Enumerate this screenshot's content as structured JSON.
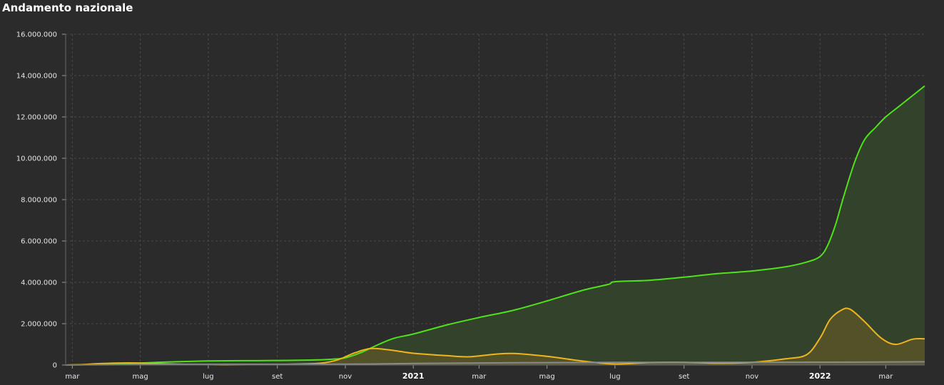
{
  "header": {
    "title": "Andamento nazionale"
  },
  "colors": {
    "background": "#2b2b2b",
    "grid": "#4a4a4a",
    "green": "#4fe11a",
    "green_fill": "#34432a",
    "yellow": "#f0b41c",
    "yellow_fill": "#5a5527",
    "gray": "#8a8a8a"
  },
  "chart_data": {
    "type": "area",
    "title": "",
    "xlabel": "",
    "ylabel": "",
    "ylim": [
      0,
      16000000
    ],
    "yticks": [
      0,
      2000000,
      4000000,
      6000000,
      8000000,
      10000000,
      12000000,
      14000000,
      16000000
    ],
    "ytick_labels": [
      "0",
      "2.000.000",
      "4.000.000",
      "6.000.000",
      "8.000.000",
      "10.000.000",
      "12.000.000",
      "14.000.000",
      "16.000.000"
    ],
    "xlim": [
      "2020-02-24",
      "2022-04-05"
    ],
    "xticks": [
      {
        "date": "2020-03-01",
        "label": "mar",
        "year": false
      },
      {
        "date": "2020-05-01",
        "label": "mag",
        "year": false
      },
      {
        "date": "2020-07-01",
        "label": "lug",
        "year": false
      },
      {
        "date": "2020-09-01",
        "label": "set",
        "year": false
      },
      {
        "date": "2020-11-01",
        "label": "nov",
        "year": false
      },
      {
        "date": "2021-01-01",
        "label": "2021",
        "year": true
      },
      {
        "date": "2021-03-01",
        "label": "mar",
        "year": false
      },
      {
        "date": "2021-05-01",
        "label": "mag",
        "year": false
      },
      {
        "date": "2021-07-01",
        "label": "lug",
        "year": false
      },
      {
        "date": "2021-09-01",
        "label": "set",
        "year": false
      },
      {
        "date": "2021-11-01",
        "label": "nov",
        "year": false
      },
      {
        "date": "2022-01-01",
        "label": "2022",
        "year": true
      },
      {
        "date": "2022-03-01",
        "label": "mar",
        "year": false
      }
    ],
    "grid": true,
    "legend": "none",
    "series": [
      {
        "color": "#4fe11a",
        "points": [
          [
            "2020-02-24",
            0
          ],
          [
            "2020-03-15",
            20000
          ],
          [
            "2020-04-01",
            60000
          ],
          [
            "2020-05-01",
            100000
          ],
          [
            "2020-06-01",
            160000
          ],
          [
            "2020-07-01",
            200000
          ],
          [
            "2020-08-01",
            210000
          ],
          [
            "2020-09-01",
            220000
          ],
          [
            "2020-10-01",
            240000
          ],
          [
            "2020-10-20",
            280000
          ],
          [
            "2020-11-01",
            350000
          ],
          [
            "2020-11-15",
            600000
          ],
          [
            "2020-12-01",
            1000000
          ],
          [
            "2020-12-15",
            1300000
          ],
          [
            "2021-01-01",
            1500000
          ],
          [
            "2021-02-01",
            1950000
          ],
          [
            "2021-03-01",
            2300000
          ],
          [
            "2021-04-01",
            2650000
          ],
          [
            "2021-05-01",
            3100000
          ],
          [
            "2021-06-01",
            3600000
          ],
          [
            "2021-06-25",
            3900000
          ],
          [
            "2021-07-01",
            4030000
          ],
          [
            "2021-08-01",
            4100000
          ],
          [
            "2021-09-01",
            4250000
          ],
          [
            "2021-10-01",
            4420000
          ],
          [
            "2021-11-01",
            4550000
          ],
          [
            "2021-12-01",
            4750000
          ],
          [
            "2021-12-20",
            4980000
          ],
          [
            "2022-01-01",
            5250000
          ],
          [
            "2022-01-08",
            5800000
          ],
          [
            "2022-01-15",
            6800000
          ],
          [
            "2022-01-22",
            8100000
          ],
          [
            "2022-02-01",
            9800000
          ],
          [
            "2022-02-10",
            10900000
          ],
          [
            "2022-02-20",
            11500000
          ],
          [
            "2022-03-01",
            12000000
          ],
          [
            "2022-03-15",
            12600000
          ],
          [
            "2022-04-05",
            13500000
          ]
        ]
      },
      {
        "color": "#f0b41c",
        "points": [
          [
            "2020-02-24",
            0
          ],
          [
            "2020-03-10",
            20000
          ],
          [
            "2020-03-25",
            70000
          ],
          [
            "2020-04-20",
            105000
          ],
          [
            "2020-05-15",
            70000
          ],
          [
            "2020-06-15",
            30000
          ],
          [
            "2020-07-15",
            12000
          ],
          [
            "2020-08-15",
            20000
          ],
          [
            "2020-09-15",
            40000
          ],
          [
            "2020-10-10",
            90000
          ],
          [
            "2020-10-25",
            250000
          ],
          [
            "2020-11-10",
            600000
          ],
          [
            "2020-11-25",
            800000
          ],
          [
            "2020-12-15",
            700000
          ],
          [
            "2021-01-01",
            570000
          ],
          [
            "2021-02-01",
            450000
          ],
          [
            "2021-02-20",
            400000
          ],
          [
            "2021-03-15",
            520000
          ],
          [
            "2021-04-01",
            560000
          ],
          [
            "2021-05-01",
            420000
          ],
          [
            "2021-06-01",
            200000
          ],
          [
            "2021-07-01",
            50000
          ],
          [
            "2021-08-01",
            120000
          ],
          [
            "2021-09-01",
            130000
          ],
          [
            "2021-10-01",
            90000
          ],
          [
            "2021-11-01",
            130000
          ],
          [
            "2021-12-01",
            300000
          ],
          [
            "2021-12-20",
            500000
          ],
          [
            "2022-01-01",
            1300000
          ],
          [
            "2022-01-10",
            2200000
          ],
          [
            "2022-01-20",
            2650000
          ],
          [
            "2022-01-28",
            2700000
          ],
          [
            "2022-02-10",
            2100000
          ],
          [
            "2022-02-25",
            1300000
          ],
          [
            "2022-03-10",
            1000000
          ],
          [
            "2022-03-25",
            1250000
          ],
          [
            "2022-04-05",
            1270000
          ]
        ]
      },
      {
        "color": "#8a8a8a",
        "points": [
          [
            "2020-02-24",
            0
          ],
          [
            "2020-04-01",
            15000
          ],
          [
            "2020-06-01",
            35000
          ],
          [
            "2020-09-01",
            36000
          ],
          [
            "2020-11-01",
            40000
          ],
          [
            "2021-01-01",
            75000
          ],
          [
            "2021-04-01",
            110000
          ],
          [
            "2021-07-01",
            128000
          ],
          [
            "2021-10-01",
            131000
          ],
          [
            "2022-01-01",
            138000
          ],
          [
            "2022-04-05",
            160000
          ]
        ]
      }
    ]
  }
}
